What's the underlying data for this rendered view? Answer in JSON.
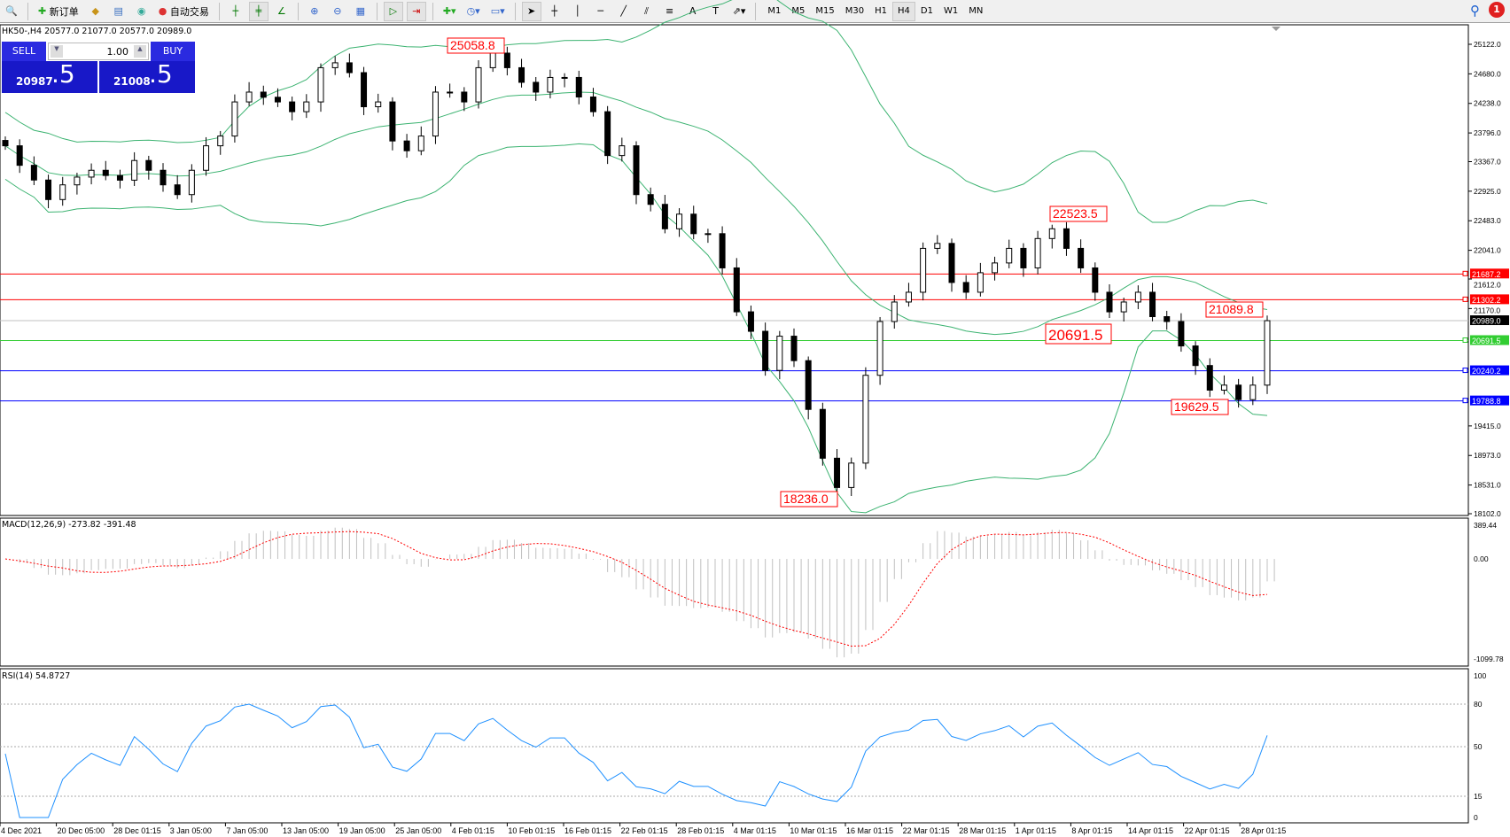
{
  "toolbar": {
    "new_order": "新订单",
    "auto_trading": "自动交易",
    "timeframes": [
      "M1",
      "M5",
      "M15",
      "M30",
      "H1",
      "H4",
      "D1",
      "W1",
      "MN"
    ],
    "selected_timeframe": "H4",
    "notification_count": "1"
  },
  "chart": {
    "info": "HK50-,H4  20577.0 21077.0 20577.0 20989.0"
  },
  "one_click": {
    "sell": "SELL",
    "buy": "BUY",
    "volume": "1.00",
    "bid_main": "20987",
    "bid_frac": ".5",
    "ask_main": "21008",
    "ask_frac": ".5"
  },
  "colors": {
    "bull_bear_candle": "#000000",
    "bands": "#3cb371",
    "macd_signal": "#ff0000",
    "macd_hist": "#c0c0c0",
    "rsi": "#1e90ff"
  },
  "chart_data": [
    {
      "type": "candlestick",
      "title": "HK50-,H4",
      "ylim": [
        18102,
        25122
      ],
      "y_ticks": [
        "25122.0",
        "24680.0",
        "24238.0",
        "23796.0",
        "23367.0",
        "22925.0",
        "22483.0",
        "22041.0",
        "21612.0",
        "21170.0",
        "19415.0",
        "18973.0",
        "18531.0",
        "18102.0"
      ],
      "x_ticks": [
        "4 Dec 2021",
        "20 Dec 05:00",
        "28 Dec 01:15",
        "3 Jan 05:00",
        "7 Jan 05:00",
        "13 Jan 05:00",
        "19 Jan 05:00",
        "25 Jan 05:00",
        "4 Feb 01:15",
        "10 Feb 01:15",
        "16 Feb 01:15",
        "22 Feb 01:15",
        "28 Feb 01:15",
        "4 Mar 01:15",
        "10 Mar 01:15",
        "16 Mar 01:15",
        "22 Mar 01:15",
        "28 Mar 01:15",
        "1 Apr 01:15",
        "8 Apr 01:15",
        "14 Apr 01:15",
        "22 Apr 01:15",
        "28 Apr 01:15"
      ],
      "closes": [
        23604,
        23312,
        23092,
        22800,
        23020,
        23136,
        23238,
        23160,
        23090,
        23384,
        23238,
        23020,
        22874,
        23238,
        23604,
        23750,
        24260,
        24407,
        24330,
        24260,
        24114,
        24260,
        24772,
        24845,
        24698,
        24188,
        24260,
        23676,
        23530,
        23750,
        24407,
        24407,
        24260,
        24772,
        24990,
        24772,
        24553,
        24407,
        24626,
        24626,
        24334,
        24114,
        23458,
        23604,
        22874,
        22728,
        22363,
        22582,
        22290,
        22290,
        21778,
        21121,
        20830,
        20245,
        20757,
        20391,
        19662,
        18932,
        18494,
        18859,
        20172,
        20976,
        21268,
        21414,
        22070,
        22144,
        21560,
        21414,
        21706,
        21852,
        22070,
        21778,
        22217,
        22363,
        22070,
        21778,
        21414,
        21121,
        21268,
        21414,
        21049,
        20976,
        20611,
        20318,
        19950,
        20025,
        19808,
        20025,
        20989
      ],
      "horizontal_lines": [
        {
          "price": "21687.2",
          "color": "#ff0000"
        },
        {
          "price": "21302.2",
          "color": "#ff0000"
        },
        {
          "price": "20989.0",
          "color": "#000000"
        },
        {
          "price": "20691.5",
          "color": "#32cd32"
        },
        {
          "price": "20240.2",
          "color": "#0000ff"
        },
        {
          "price": "19788.8",
          "color": "#0000ff"
        }
      ],
      "annotations": [
        "25058.8",
        "22523.5",
        "21089.8",
        "20691.5",
        "19629.5",
        "18236.0"
      ]
    },
    {
      "type": "bar+line",
      "title": "MACD(12,26,9) -273.82 -391.48",
      "y_ticks": [
        "389.44",
        "0.00",
        "-1099.78"
      ],
      "ylim": [
        -1099.78,
        389.44
      ]
    },
    {
      "type": "line",
      "title": "RSI(14) 54.8727",
      "y_ticks": [
        "100",
        "80",
        "50",
        "15",
        "0"
      ],
      "ylim": [
        0,
        100
      ]
    }
  ]
}
